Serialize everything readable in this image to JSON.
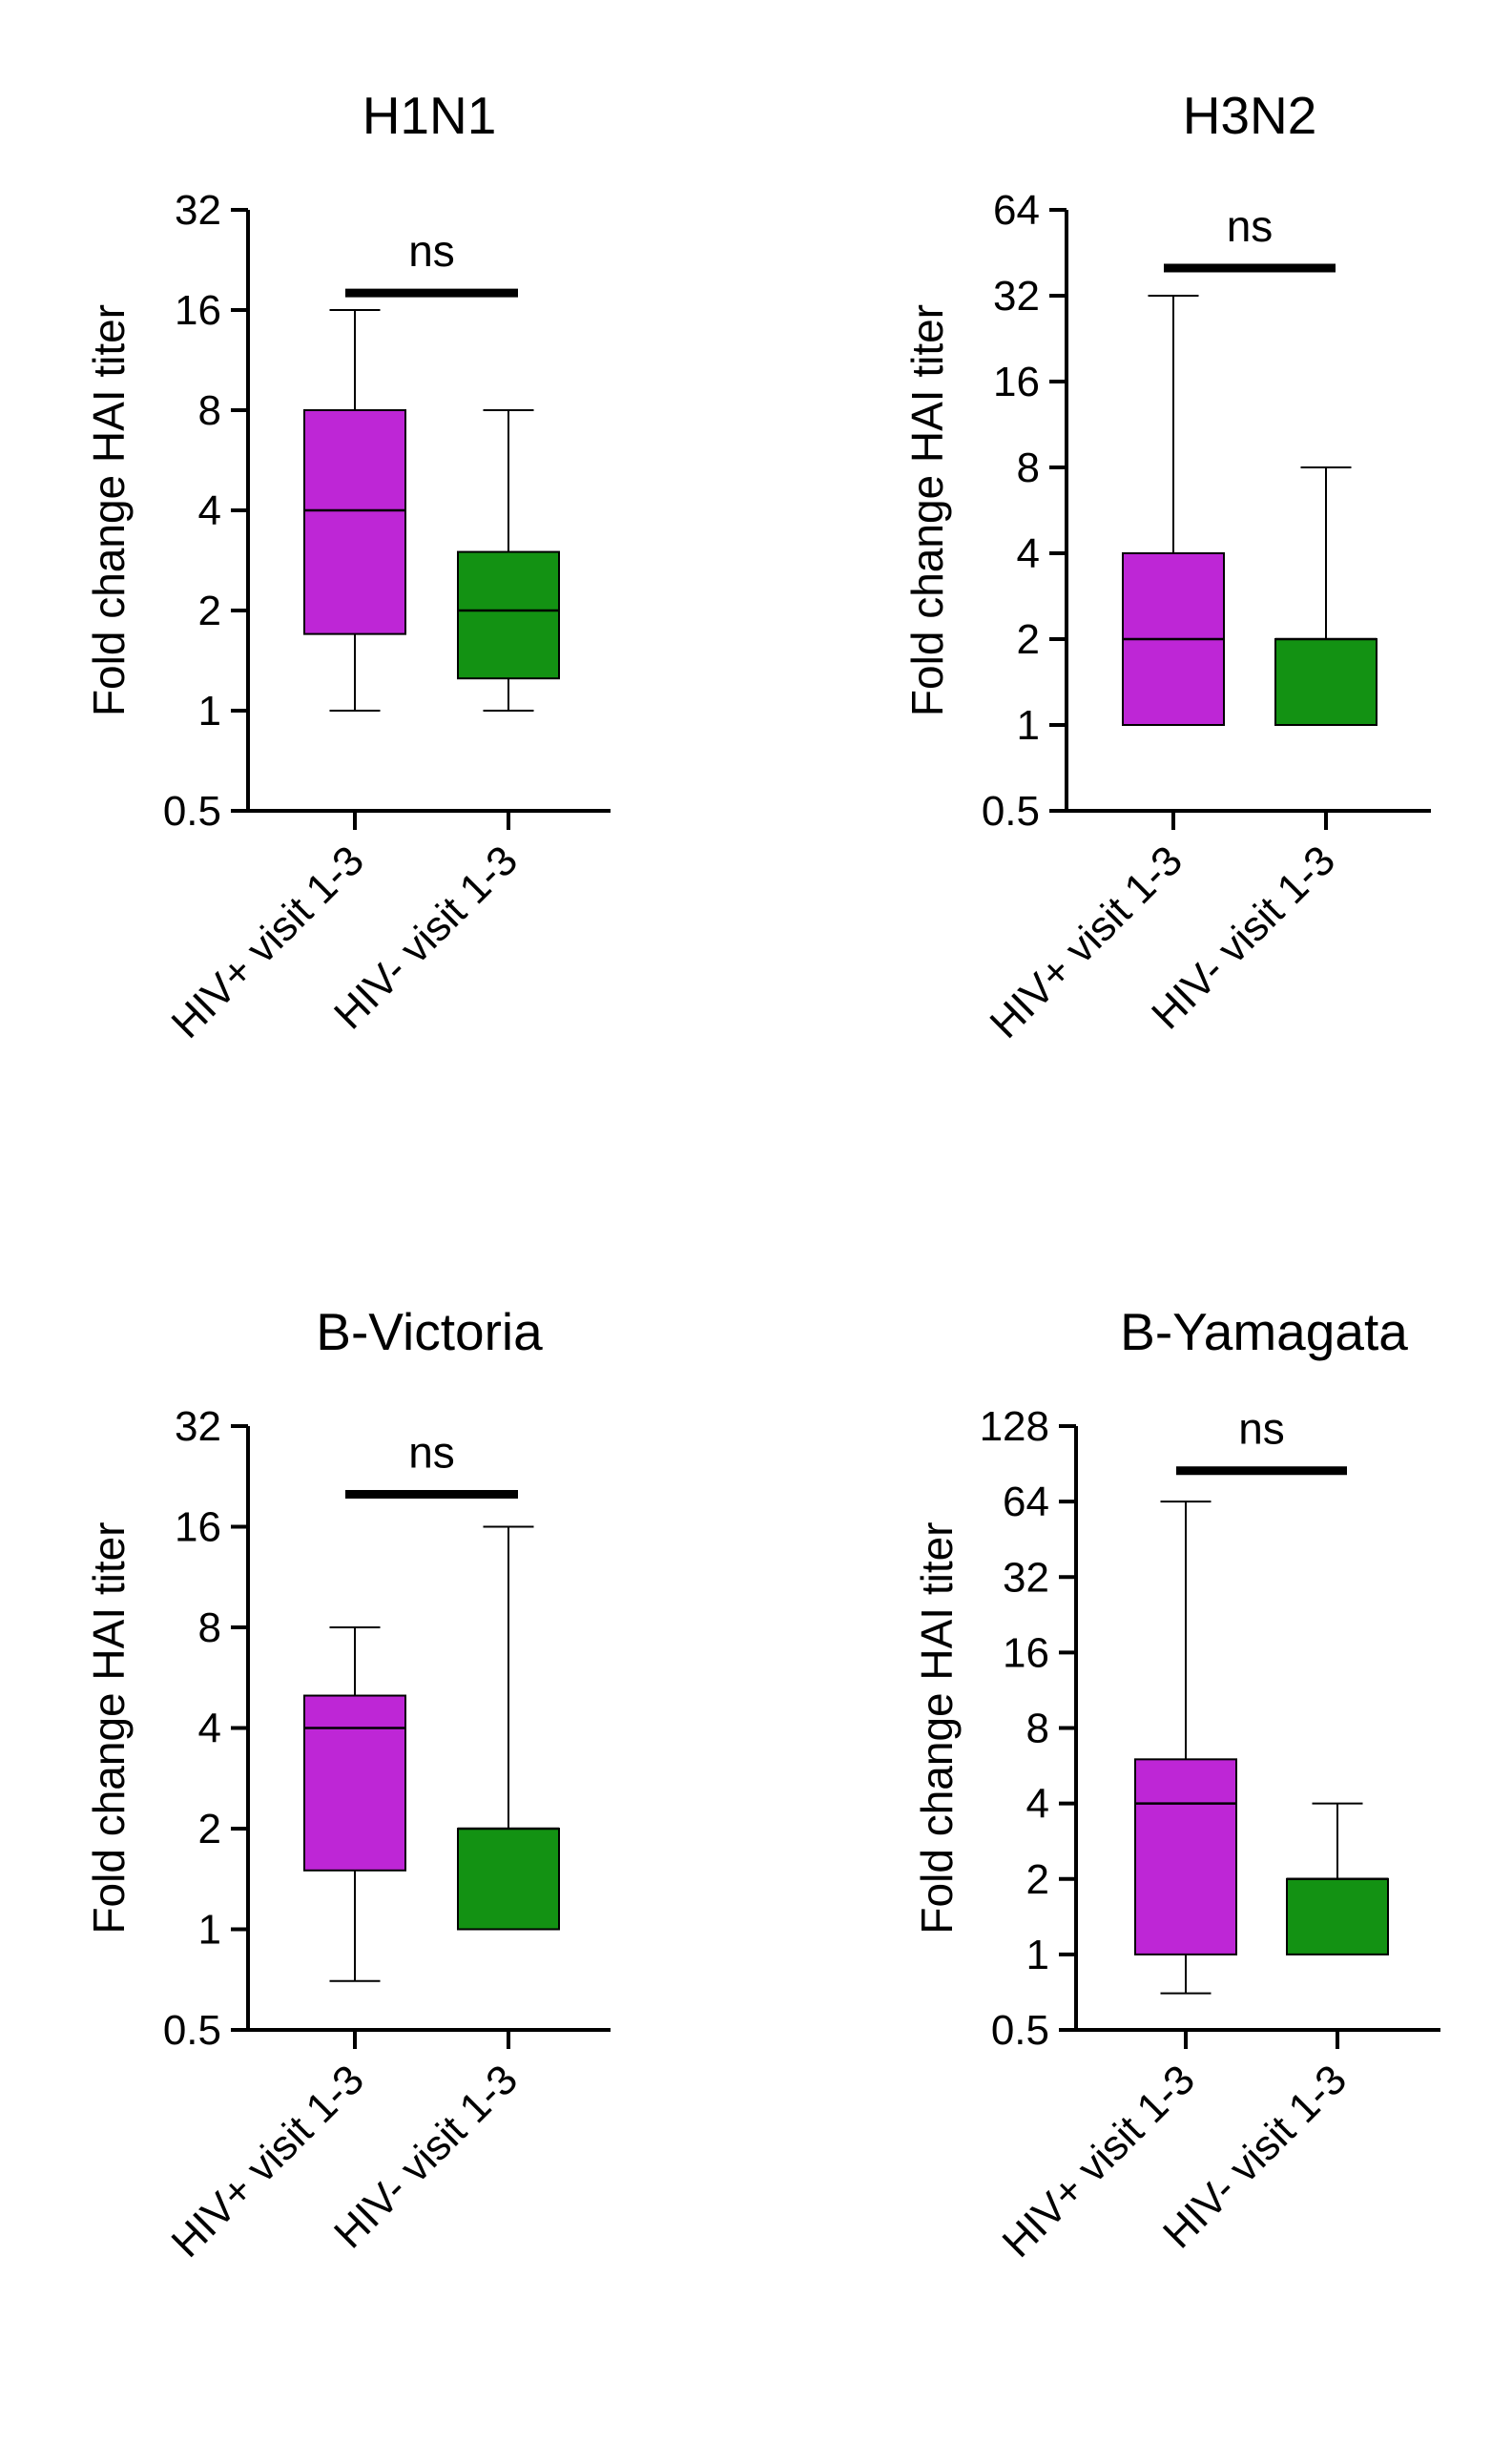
{
  "figure": {
    "background": "#ffffff"
  },
  "chart_data": [
    {
      "type": "box",
      "title": "H1N1",
      "ylabel": "Fold change HAI titer",
      "xlabel": "",
      "yscale": "log2",
      "ylim": [
        0.5,
        32
      ],
      "yticks": [
        "0.5",
        "1",
        "2",
        "4",
        "8",
        "16",
        "32"
      ],
      "categories": [
        "HIV+ visit 1-3",
        "HIV- visit 1-3"
      ],
      "series": [
        {
          "category": "HIV+ visit 1-3",
          "color": "#BE26D6",
          "min": 1,
          "q1": 1.7,
          "median": 4,
          "q3": 8,
          "max": 16
        },
        {
          "category": "HIV- visit 1-3",
          "color": "#139213",
          "min": 1,
          "q1": 1.25,
          "median": 2,
          "q3": 3,
          "max": 8
        }
      ],
      "significance": {
        "label": "ns",
        "bar_y": 18
      }
    },
    {
      "type": "box",
      "title": "H3N2",
      "ylabel": "Fold change HAI titer",
      "xlabel": "",
      "yscale": "log2",
      "ylim": [
        0.5,
        64
      ],
      "yticks": [
        "0.5",
        "1",
        "2",
        "4",
        "8",
        "16",
        "32",
        "64"
      ],
      "categories": [
        "HIV+ visit 1-3",
        "HIV- visit 1-3"
      ],
      "series": [
        {
          "category": "HIV+ visit 1-3",
          "color": "#BE26D6",
          "min": 1,
          "q1": 1,
          "median": 2,
          "q3": 4,
          "max": 32
        },
        {
          "category": "HIV- visit 1-3",
          "color": "#139213",
          "min": 1,
          "q1": 1,
          "median": 2,
          "q3": 2,
          "max": 8
        }
      ],
      "significance": {
        "label": "ns",
        "bar_y": 40
      }
    },
    {
      "type": "box",
      "title": "B-Victoria",
      "ylabel": "Fold change HAI titer",
      "xlabel": "",
      "yscale": "log2",
      "ylim": [
        0.5,
        32
      ],
      "yticks": [
        "0.5",
        "1",
        "2",
        "4",
        "8",
        "16",
        "32"
      ],
      "categories": [
        "HIV+ visit 1-3",
        "HIV- visit 1-3"
      ],
      "series": [
        {
          "category": "HIV+ visit 1-3",
          "color": "#BE26D6",
          "min": 0.7,
          "q1": 1.5,
          "median": 4,
          "q3": 5,
          "max": 8
        },
        {
          "category": "HIV- visit 1-3",
          "color": "#139213",
          "min": 1,
          "q1": 1,
          "median": 2,
          "q3": 2,
          "max": 16
        }
      ],
      "significance": {
        "label": "ns",
        "bar_y": 20
      }
    },
    {
      "type": "box",
      "title": "B-Yamagata",
      "ylabel": "Fold change HAI titer",
      "xlabel": "",
      "yscale": "log2",
      "ylim": [
        0.5,
        128
      ],
      "yticks": [
        "0.5",
        "1",
        "2",
        "4",
        "8",
        "16",
        "32",
        "64",
        "128"
      ],
      "categories": [
        "HIV+ visit 1-3",
        "HIV- visit 1-3"
      ],
      "series": [
        {
          "category": "HIV+ visit 1-3",
          "color": "#BE26D6",
          "min": 0.7,
          "q1": 1,
          "median": 4,
          "q3": 6,
          "max": 64
        },
        {
          "category": "HIV- visit 1-3",
          "color": "#139213",
          "min": 1,
          "q1": 1,
          "median": 2,
          "q3": 2,
          "max": 4
        }
      ],
      "significance": {
        "label": "ns",
        "bar_y": 85
      }
    }
  ]
}
